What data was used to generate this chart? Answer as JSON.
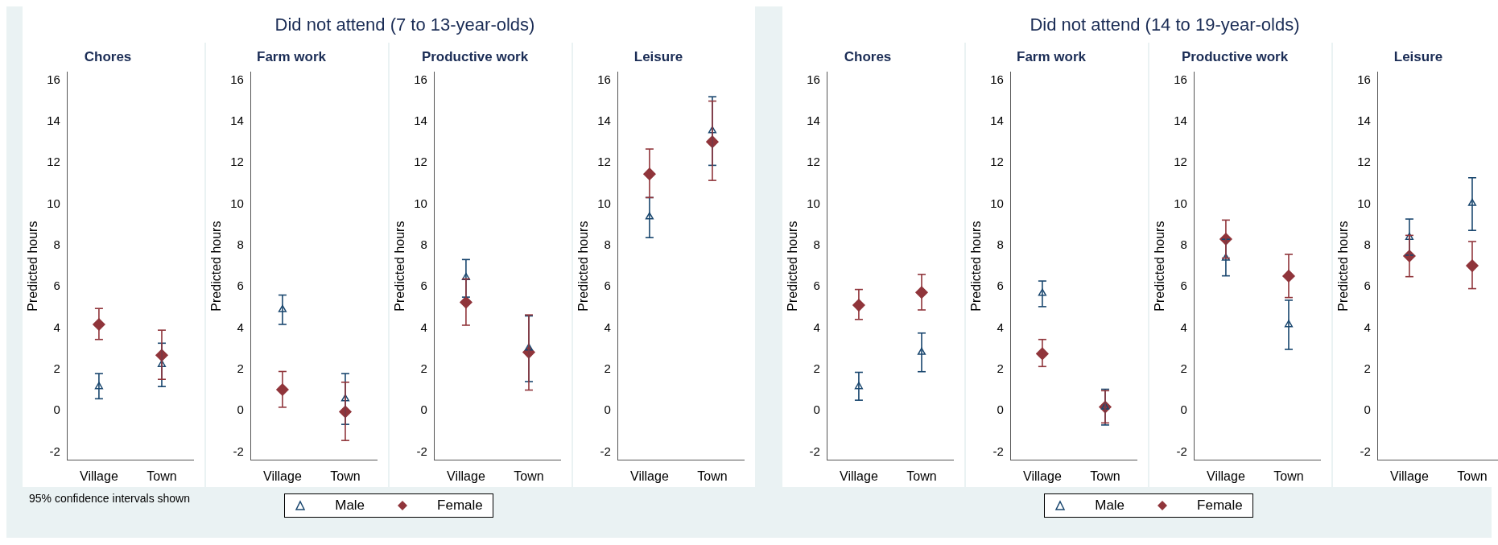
{
  "chart_data": [
    {
      "type": "scatter",
      "title": "Chores",
      "ylabel": "Predicted hours",
      "categories": [
        "Village",
        "Town"
      ],
      "ylim": [
        -2.4,
        16.4
      ],
      "yticks": [
        -2,
        0,
        2,
        4,
        6,
        8,
        10,
        12,
        14,
        16
      ],
      "grid": false,
      "legend": "bottom",
      "annotations": [
        "95% confidence intervals shown"
      ],
      "series": [
        {
          "name": "Male",
          "color": "#1a476f",
          "marker": "triangle",
          "values": [
            1.17,
            2.24
          ],
          "errors": [
            [
              0.58,
              1.8
            ],
            [
              1.17,
              3.27
            ]
          ]
        },
        {
          "name": "Female",
          "color": "#90353b",
          "marker": "diamond",
          "values": [
            4.18,
            2.69
          ],
          "errors": [
            [
              3.45,
              4.95
            ],
            [
              1.52,
              3.9
            ]
          ]
        }
      ]
    },
    {
      "type": "scatter",
      "title": "Farm work",
      "ylabel": "Predicted hours",
      "categories": [
        "Village",
        "Town"
      ],
      "ylim": [
        -2.4,
        16.4
      ],
      "yticks": [
        -2,
        0,
        2,
        4,
        6,
        8,
        10,
        12,
        14,
        16
      ],
      "grid": false,
      "legend": "bottom",
      "series": [
        {
          "name": "Male",
          "color": "#1a476f",
          "marker": "triangle",
          "values": [
            4.9,
            0.58
          ],
          "errors": [
            [
              4.18,
              5.6
            ],
            [
              -0.66,
              1.8
            ]
          ]
        },
        {
          "name": "Female",
          "color": "#90353b",
          "marker": "diamond",
          "values": [
            1.02,
            -0.05
          ],
          "errors": [
            [
              0.17,
              1.9
            ],
            [
              -1.44,
              1.38
            ]
          ]
        }
      ]
    },
    {
      "type": "scatter",
      "subtitle": "Did not attend (7 to 13-year-olds)",
      "title": "Productive work",
      "ylabel": "Predicted hours",
      "categories": [
        "Village",
        "Town"
      ],
      "ylim": [
        -2.4,
        16.4
      ],
      "yticks": [
        -2,
        0,
        2,
        4,
        6,
        8,
        10,
        12,
        14,
        16
      ],
      "grid": false,
      "legend": "bottom",
      "series": [
        {
          "name": "Male",
          "color": "#1a476f",
          "marker": "triangle",
          "values": [
            6.45,
            3.04
          ],
          "errors": [
            [
              5.5,
              7.32
            ],
            [
              1.41,
              4.59
            ]
          ]
        },
        {
          "name": "Female",
          "color": "#90353b",
          "marker": "diamond",
          "values": [
            5.25,
            2.83
          ],
          "errors": [
            [
              4.14,
              6.38
            ],
            [
              1.0,
              4.64
            ]
          ]
        }
      ]
    },
    {
      "type": "scatter",
      "title": "Leisure",
      "ylabel": "Predicted hours",
      "categories": [
        "Village",
        "Town"
      ],
      "ylim": [
        -2.4,
        16.4
      ],
      "yticks": [
        -2,
        0,
        2,
        4,
        6,
        8,
        10,
        12,
        14,
        16
      ],
      "grid": false,
      "legend": "bottom",
      "series": [
        {
          "name": "Male",
          "color": "#1a476f",
          "marker": "triangle",
          "values": [
            9.39,
            13.56
          ],
          "errors": [
            [
              8.38,
              10.32
            ],
            [
              11.88,
              15.2
            ]
          ]
        },
        {
          "name": "Female",
          "color": "#90353b",
          "marker": "diamond",
          "values": [
            11.46,
            13.02
          ],
          "errors": [
            [
              10.32,
              12.67
            ],
            [
              11.15,
              14.99
            ]
          ]
        }
      ]
    },
    {
      "type": "scatter",
      "title": "Chores",
      "ylabel": "Predicted hours",
      "categories": [
        "Village",
        "Town"
      ],
      "ylim": [
        -2.4,
        16.4
      ],
      "yticks": [
        -2,
        0,
        2,
        4,
        6,
        8,
        10,
        12,
        14,
        16
      ],
      "grid": false,
      "legend": "bottom",
      "series": [
        {
          "name": "Male",
          "color": "#1a476f",
          "marker": "triangle",
          "values": [
            1.17,
            2.83
          ],
          "errors": [
            [
              0.51,
              1.86
            ],
            [
              1.89,
              3.76
            ]
          ]
        },
        {
          "name": "Female",
          "color": "#90353b",
          "marker": "diamond",
          "values": [
            5.11,
            5.73
          ],
          "errors": [
            [
              4.42,
              5.87
            ],
            [
              4.88,
              6.6
            ]
          ]
        }
      ]
    },
    {
      "type": "scatter",
      "title": "Farm work",
      "ylabel": "Predicted hours",
      "categories": [
        "Village",
        "Town"
      ],
      "ylim": [
        -2.4,
        16.4
      ],
      "yticks": [
        -2,
        0,
        2,
        4,
        6,
        8,
        10,
        12,
        14,
        16
      ],
      "grid": false,
      "legend": "bottom",
      "series": [
        {
          "name": "Male",
          "color": "#1a476f",
          "marker": "triangle",
          "values": [
            5.69,
            0.18
          ],
          "errors": [
            [
              5.04,
              6.28
            ],
            [
              -0.69,
              1.04
            ]
          ]
        },
        {
          "name": "Female",
          "color": "#90353b",
          "marker": "diamond",
          "values": [
            2.76,
            0.18
          ],
          "errors": [
            [
              2.14,
              3.45
            ],
            [
              -0.59,
              0.97
            ]
          ]
        }
      ]
    },
    {
      "type": "scatter",
      "subtitle": "Did not attend (14 to 19-year-olds)",
      "title": "Productive work",
      "ylabel": "Predicted hours",
      "categories": [
        "Village",
        "Town"
      ],
      "ylim": [
        -2.4,
        16.4
      ],
      "yticks": [
        -2,
        0,
        2,
        4,
        6,
        8,
        10,
        12,
        14,
        16
      ],
      "grid": false,
      "legend": "bottom",
      "series": [
        {
          "name": "Male",
          "color": "#1a476f",
          "marker": "triangle",
          "values": [
            7.39,
            4.17
          ],
          "errors": [
            [
              6.53,
              8.3
            ],
            [
              2.97,
              5.35
            ]
          ]
        },
        {
          "name": "Female",
          "color": "#90353b",
          "marker": "diamond",
          "values": [
            8.31,
            6.52
          ],
          "errors": [
            [
              7.39,
              9.23
            ],
            [
              5.48,
              7.57
            ]
          ]
        }
      ]
    },
    {
      "type": "scatter",
      "title": "Leisure",
      "ylabel": "Predicted hours",
      "categories": [
        "Village",
        "Town"
      ],
      "ylim": [
        -2.4,
        16.4
      ],
      "yticks": [
        -2,
        0,
        2,
        4,
        6,
        8,
        10,
        12,
        14,
        16
      ],
      "grid": false,
      "legend": "bottom",
      "series": [
        {
          "name": "Male",
          "color": "#1a476f",
          "marker": "triangle",
          "values": [
            8.4,
            10.04
          ],
          "errors": [
            [
              7.53,
              9.28
            ],
            [
              8.73,
              11.28
            ]
          ]
        },
        {
          "name": "Female",
          "color": "#90353b",
          "marker": "diamond",
          "values": [
            7.49,
            7.02
          ],
          "errors": [
            [
              6.49,
              8.49
            ],
            [
              5.91,
              8.19
            ]
          ]
        }
      ]
    }
  ]
}
